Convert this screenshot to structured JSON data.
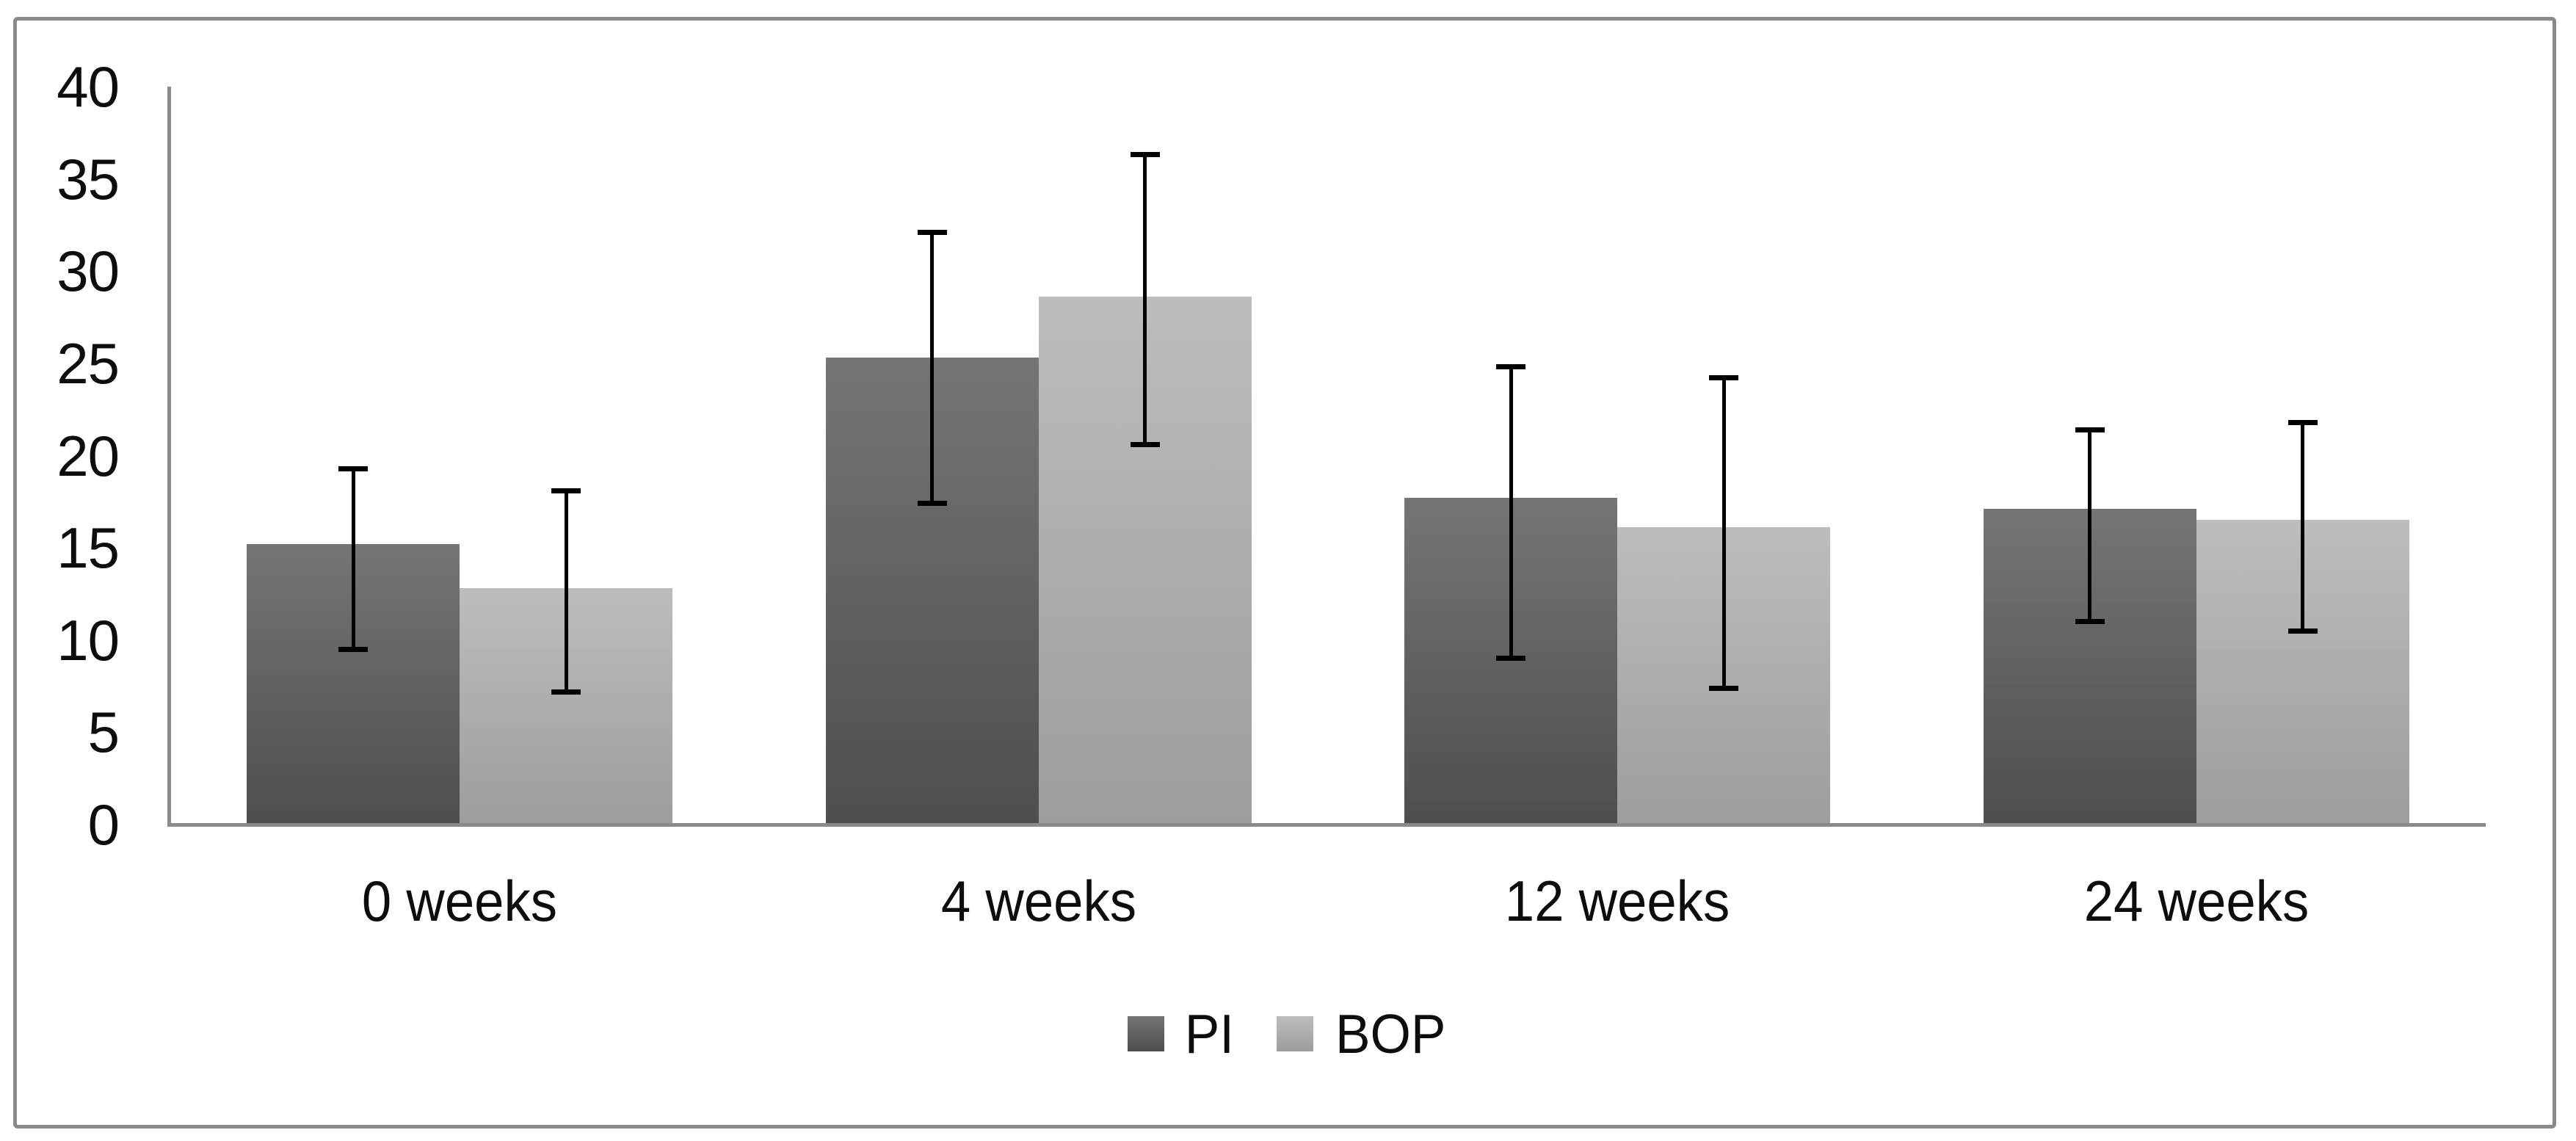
{
  "chart_data": {
    "type": "bar",
    "categories": [
      "0 weeks",
      "4 weeks",
      "12 weeks",
      "24 weeks"
    ],
    "series": [
      {
        "name": "PI",
        "values": [
          15.2,
          25.3,
          17.7,
          17.1
        ],
        "error_low": [
          9.5,
          17.4,
          9.0,
          11.0
        ],
        "error_high": [
          19.3,
          32.1,
          24.8,
          21.4
        ]
      },
      {
        "name": "BOP",
        "values": [
          12.8,
          28.6,
          16.1,
          16.5
        ],
        "error_low": [
          7.2,
          20.6,
          7.4,
          10.5
        ],
        "error_high": [
          18.1,
          36.3,
          24.2,
          21.8
        ]
      }
    ],
    "xlabel": "",
    "ylabel": "",
    "ylim": [
      0,
      40
    ],
    "yticks": [
      0,
      5,
      10,
      15,
      20,
      25,
      30,
      35,
      40
    ],
    "grid": false,
    "legend_position": "bottom",
    "error_bars": true
  },
  "colors": {
    "pi_top": "#757575",
    "pi_bottom": "#4e4e4e",
    "bop_top": "#bdbdbd",
    "bop_bottom": "#9d9d9d",
    "axis": "#8a8a8a",
    "frame": "#8a8a8a",
    "error_bar": "#000000",
    "text": "#0d0d0d",
    "background": "#ffffff"
  }
}
